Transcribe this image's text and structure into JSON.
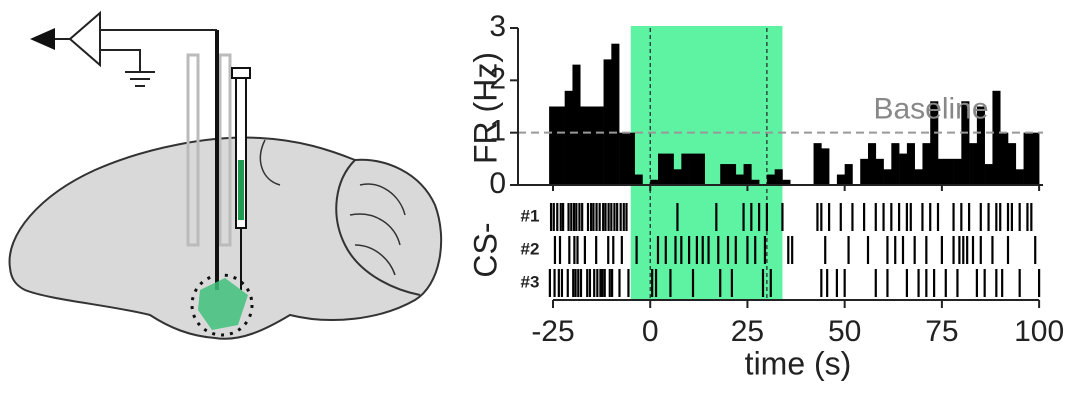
{
  "chart_data": {
    "type": "histogram",
    "ylabel": "FR (Hz)",
    "xlabel": "time (s)",
    "raster_label": "CS-",
    "bins": [
      -26,
      -24,
      -22,
      -20,
      -18,
      -16,
      -14,
      -12,
      -10,
      -8,
      -6,
      -4,
      -2,
      0,
      2,
      4,
      6,
      8,
      10,
      12,
      14,
      16,
      18,
      20,
      22,
      24,
      26,
      28,
      30,
      32,
      34,
      36,
      38,
      40,
      42,
      44,
      46,
      48,
      50,
      52,
      54,
      56,
      58,
      60,
      62,
      64,
      66,
      68,
      70,
      72,
      74,
      76,
      78,
      80,
      82,
      84,
      86,
      88,
      90,
      92,
      94,
      96,
      98,
      100
    ],
    "values": [
      1.5,
      1.5,
      1.8,
      2.3,
      1.5,
      1.5,
      1.5,
      2.4,
      2.7,
      1.0,
      1.0,
      0.2,
      0,
      0.1,
      0.6,
      0.6,
      0.3,
      0.6,
      0.6,
      0.6,
      0,
      0,
      0.4,
      0.4,
      0.2,
      0.4,
      0.1,
      0,
      0.2,
      0.3,
      0.1,
      0,
      0,
      0,
      0.8,
      0.7,
      0,
      0.2,
      0.4,
      0,
      0.5,
      0.8,
      0.5,
      0.3,
      0.8,
      0.6,
      0.8,
      0.3,
      0.8,
      1.6,
      0.5,
      0.5,
      0.5,
      1.6,
      0.8,
      1.5,
      0.4,
      1.8,
      1.0,
      0.8,
      0.3,
      1.0,
      1.0
    ],
    "color": "#000000",
    "xlim": [
      -34,
      101
    ],
    "ylim": [
      0,
      3
    ],
    "xticks": [
      -25,
      0,
      25,
      50,
      75,
      100
    ],
    "yticks": [
      0,
      1,
      2,
      3
    ],
    "shade": {
      "range": [
        -5,
        34
      ],
      "color": "#5ef3a2"
    },
    "vlines": [
      0,
      30
    ],
    "baseline": {
      "value": 1,
      "label": "Baseline"
    },
    "raster": [
      {
        "name": "#1",
        "times": [
          -25.5,
          -24.8,
          -23.9,
          -23,
          -22.4,
          -21,
          -20.3,
          -19.6,
          -19,
          -18.2,
          -17.5,
          -16,
          -15.2,
          -14.6,
          -13.8,
          -13,
          -12.1,
          -11.5,
          -10.7,
          -10,
          -9.2,
          -8.5,
          -7.6,
          -6.8,
          -6.1,
          7,
          17,
          24,
          26,
          28,
          30,
          34,
          43,
          44,
          46,
          49,
          52,
          55,
          58,
          60,
          62,
          64,
          66,
          67,
          70,
          72,
          74,
          78,
          80,
          82,
          85,
          87,
          89,
          90,
          92,
          93,
          95,
          97,
          98
        ]
      },
      {
        "name": "#2",
        "times": [
          -24.5,
          -23.2,
          -20.8,
          -19.5,
          -18.7,
          -16.8,
          -13.9,
          -10.8,
          -9.5,
          -7.3,
          -3.5,
          2,
          4,
          6.5,
          8,
          10,
          12,
          13.5,
          15,
          17.5,
          20,
          22,
          25,
          27,
          29.5,
          35.5,
          36.5,
          45,
          51,
          56,
          61,
          63,
          65,
          68,
          71,
          75,
          78,
          79.5,
          80.5,
          81.5,
          83,
          85,
          88,
          92,
          99
        ]
      },
      {
        "name": "#3",
        "times": [
          -25.8,
          -24.6,
          -23.5,
          -22.7,
          -21.2,
          -19.8,
          -19.2,
          -18.5,
          -17.8,
          -16.2,
          -15.5,
          -14.4,
          -13.6,
          -12.8,
          -12.3,
          -11.7,
          -10.4,
          -9.8,
          -7.9,
          -5.6,
          0.5,
          1.5,
          5.2,
          11,
          18,
          21,
          29,
          31,
          44,
          45.5,
          48,
          50,
          58,
          61,
          66,
          69,
          71,
          73,
          76,
          79,
          84,
          86,
          89,
          90.5,
          95,
          100
        ]
      }
    ]
  }
}
